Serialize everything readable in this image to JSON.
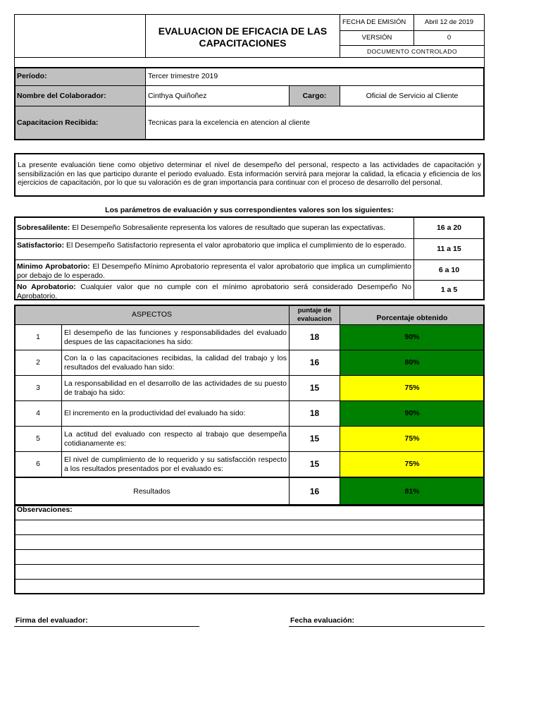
{
  "header": {
    "title": "EVALUACION DE EFICACIA DE LAS CAPACITACIONES",
    "fecha_label": "FECHA DE EMISIÓN",
    "fecha_value": "Abril 12 de 2019",
    "version_label": "VERSIÓN",
    "version_value": "0",
    "controlado": "DOCUMENTO CONTROLADO"
  },
  "info": {
    "periodo_label": "Período:",
    "periodo_value": "Tercer trimestre 2019",
    "nombre_label": "Nombre del Colaborador:",
    "nombre_value": "Cinthya Quiñoñez",
    "cargo_label": "Cargo:",
    "cargo_value": "Oficial de Servicio al Cliente",
    "capacitacion_label": "Capacitacion Recibida:",
    "capacitacion_value": "Tecnicas para la excelencia en atencion al cliente"
  },
  "intro": "La presente evaluación tiene como objetivo determinar el nivel de desempeño del personal, respecto a las actividades de capacitación y sensibilización en las que participo durante el periodo evaluado. Esta información servirá para mejorar la calidad, la eficacia y eficiencia de los ejercicios de capacitación, por lo que su valoración es de gran importancia para continuar con el proceso de desarrollo del personal.",
  "params": {
    "heading": "Los parámetros de evaluación y sus correspondientes valores son los siguientes:",
    "items": [
      {
        "name": "Sobresalilente:",
        "desc": " El Desempeño Sobresaliente representa los valores de resultado que superan las expectativas.",
        "range": "16 a 20"
      },
      {
        "name": "Satisfactorio:",
        "desc": " El Desempeño Satisfactorio representa el valor aprobatorio que implica el cumplimiento de lo esperado.",
        "range": "11 a 15"
      },
      {
        "name": "Minimo Aprobatorio:",
        "desc": " El Desempeño Mínimo Aprobatorio representa el valor aprobatorio que implica un cumplimiento por debajo de lo esperado.",
        "range": "6 a 10"
      },
      {
        "name": "No Aprobatorio:",
        "desc": " Cualquier valor que no cumple con el mínimo aprobatorio será considerado Desempeño No Aprobatorio.",
        "range": "1 a 5"
      }
    ]
  },
  "aspects": {
    "col_aspectos": "ASPECTOS",
    "col_puntaje": "puntaje de evaluacion",
    "col_porcentaje": "Porcentaje obtenido",
    "rows": [
      {
        "n": "1",
        "text": "El desempeño de las funciones y responsabilidades del evaluado despues de las  capacitaciones ha sido:",
        "score": "18",
        "pct": "90%",
        "color": "#008000"
      },
      {
        "n": "2",
        "text": "Con la o las capacitaciones recibidas, la calidad del trabajo y los resultados del evaluado han sido:",
        "score": "16",
        "pct": "80%",
        "color": "#008000"
      },
      {
        "n": "3",
        "text": "La responsabilidad en el desarrollo de las actividades de su puesto de trabajo ha sido:",
        "score": "15",
        "pct": "75%",
        "color": "#ffff00"
      },
      {
        "n": "4",
        "text": "El incremento en  la productividad del evaluado ha sido:",
        "score": "18",
        "pct": "90%",
        "color": "#008000"
      },
      {
        "n": "5",
        "text": "La actitud del evaluado con respecto al trabajo que desempeña cotidianamente es:",
        "score": "15",
        "pct": "75%",
        "color": "#ffff00"
      },
      {
        "n": "6",
        "text": "El nivel de cumplimiento de lo requerido y su satisfacción respecto a los resultados presentados por el evaluado es:",
        "score": "15",
        "pct": "75%",
        "color": "#ffff00"
      }
    ],
    "resultados_label": "Resultados",
    "resultados_score": "16",
    "resultados_pct": "81%",
    "resultados_color": "#008000"
  },
  "observaciones_label": "Observaciones:",
  "firma_label": "Firma del evaluador:",
  "fecha_eval_label": "Fecha evaluación:"
}
